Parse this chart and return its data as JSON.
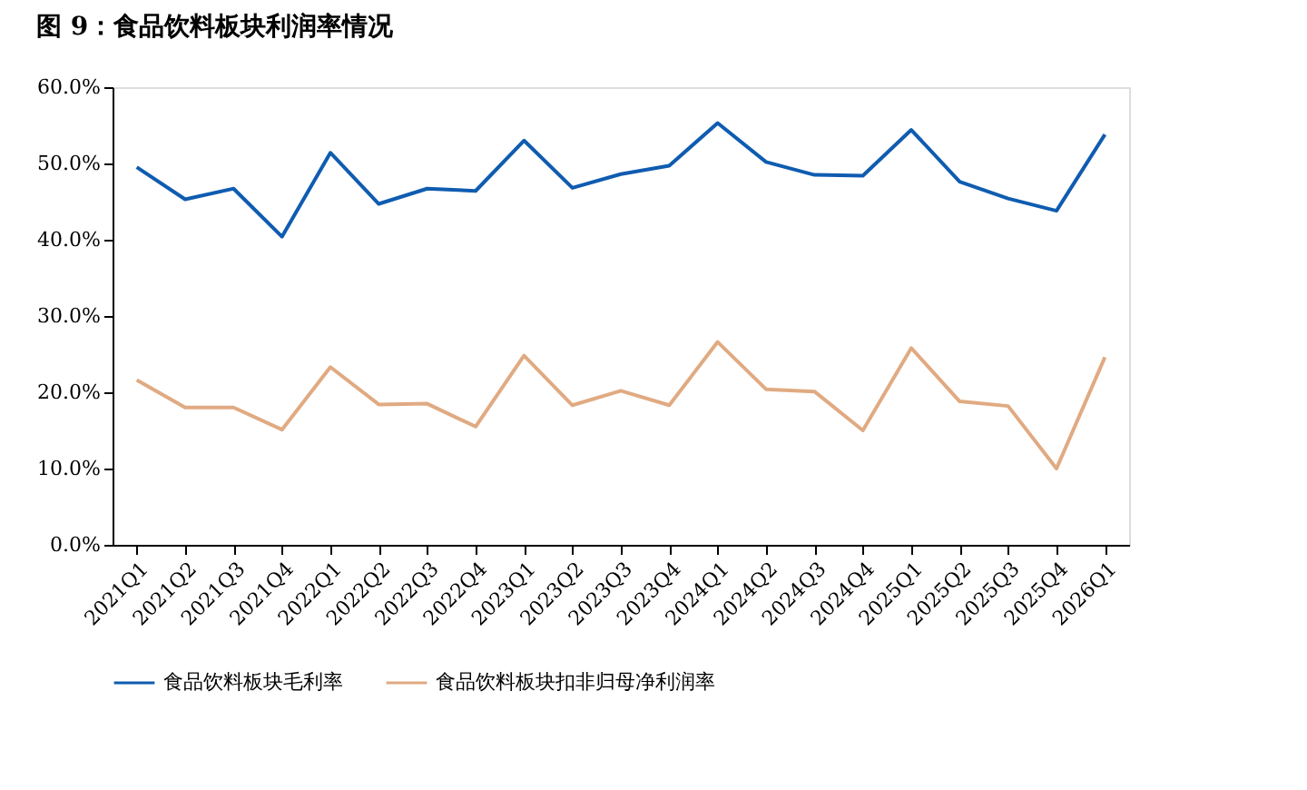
{
  "chart_data": {
    "type": "line",
    "title": "图 9：食品饮料板块利润率情况",
    "categories": [
      "2021Q1",
      "2021Q2",
      "2021Q3",
      "2021Q4",
      "2022Q1",
      "2022Q2",
      "2022Q3",
      "2022Q4",
      "2023Q1",
      "2023Q2",
      "2023Q3",
      "2023Q4",
      "2024Q1",
      "2024Q2",
      "2024Q3",
      "2024Q4",
      "2025Q1",
      "2025Q2",
      "2025Q3",
      "2025Q4",
      "2026Q1"
    ],
    "series": [
      {
        "name": "食品饮料板块毛利率",
        "color": "#0f5cb0",
        "values": [
          49.5,
          45.3,
          46.7,
          40.4,
          51.4,
          44.7,
          46.7,
          46.4,
          53.0,
          46.8,
          48.6,
          49.7,
          55.3,
          50.2,
          48.5,
          48.4,
          54.4,
          47.6,
          45.4,
          43.8,
          53.8
        ]
      },
      {
        "name": "食品饮料板块扣非归母净利润率",
        "color": "#e0aa82",
        "values": [
          21.6,
          18.0,
          18.0,
          15.1,
          23.3,
          18.4,
          18.5,
          15.5,
          24.8,
          18.3,
          20.2,
          18.3,
          26.6,
          20.4,
          20.1,
          15.0,
          25.8,
          18.8,
          18.2,
          10.0,
          24.6
        ]
      }
    ],
    "ylim": [
      0,
      60
    ],
    "yticks": [
      {
        "value": 0,
        "label": "0.0%"
      },
      {
        "value": 10,
        "label": "10.0%"
      },
      {
        "value": 20,
        "label": "20.0%"
      },
      {
        "value": 30,
        "label": "30.0%"
      },
      {
        "value": 40,
        "label": "40.0%"
      },
      {
        "value": 50,
        "label": "50.0%"
      },
      {
        "value": 60,
        "label": "60.0%"
      }
    ],
    "grid": false,
    "legend": "bottom",
    "marker": "none",
    "line_style": "solid"
  }
}
